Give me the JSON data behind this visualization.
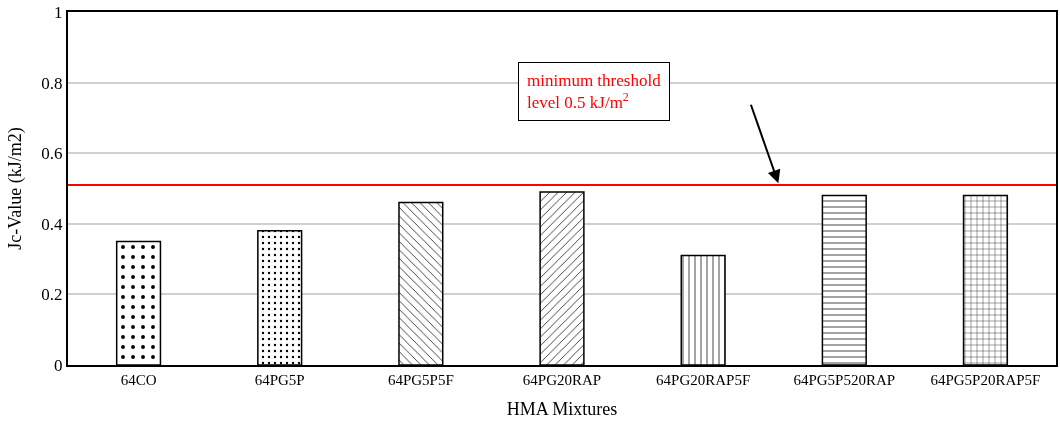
{
  "chart_data": {
    "type": "bar",
    "xlabel": "HMA Mixtures",
    "ylabel": "Jc-Value (kJ/m2)",
    "categories": [
      "64CO",
      "64PG5P",
      "64PG5P5F",
      "64PG20RAP",
      "64PG20RAP5F",
      "64PG5P520RAP",
      "64PG5P20RAP5F"
    ],
    "values": [
      0.35,
      0.38,
      0.46,
      0.49,
      0.31,
      0.48,
      0.48
    ],
    "ylim": [
      0,
      1
    ],
    "yticks": [
      0,
      0.2,
      0.4,
      0.6,
      0.8,
      1
    ],
    "grid": "y",
    "ref_lines": [
      {
        "axis": "y",
        "value": 0.51,
        "color": "#ff0000",
        "line_style": "solid"
      }
    ],
    "annotations": [
      "minimum threshold level 0.5 kJ/m$^{2}$"
    ]
  }
}
